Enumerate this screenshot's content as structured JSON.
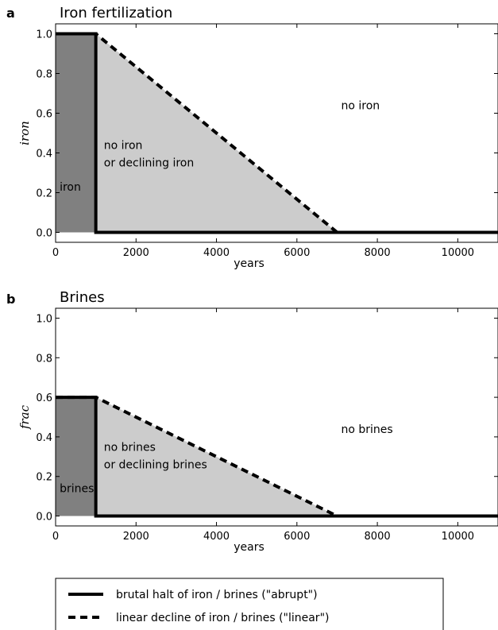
{
  "chart_data": [
    {
      "type": "line",
      "panel_letter": "a",
      "title": "Iron fertilization",
      "xlabel": "years",
      "ylabel": "iron",
      "xlim": [
        0,
        11000
      ],
      "ylim": [
        -0.05,
        1.05
      ],
      "xticks": [
        0,
        2000,
        4000,
        6000,
        8000,
        10000
      ],
      "yticks": [
        0.0,
        0.2,
        0.4,
        0.6,
        0.8,
        1.0
      ],
      "ytick_labels": [
        "0.0",
        "0.2",
        "0.4",
        "0.6",
        "0.8",
        "1.0"
      ],
      "region_fills": [
        {
          "name": "iron",
          "color": "#808080",
          "x": [
            0,
            1000,
            1000,
            0
          ],
          "y": [
            0,
            0,
            1.0,
            1.0
          ]
        },
        {
          "name": "no iron or declining iron",
          "color": "#cccccc",
          "x": [
            1000,
            1000,
            7000
          ],
          "y": [
            0,
            1.0,
            0
          ]
        }
      ],
      "series": [
        {
          "name": "abrupt",
          "style": "solid",
          "x": [
            0,
            1000,
            1000,
            11000
          ],
          "y": [
            1.0,
            1.0,
            0.0,
            0.0
          ]
        },
        {
          "name": "linear",
          "style": "dashed",
          "x": [
            0,
            1000,
            7000,
            11000
          ],
          "y": [
            1.0,
            1.0,
            0.0,
            0.0
          ]
        }
      ],
      "annotations": [
        {
          "lines": [
            "iron"
          ],
          "x": 100,
          "y": 0.21
        },
        {
          "lines": [
            "no iron",
            "or declining iron"
          ],
          "x": 1200,
          "y": 0.42
        },
        {
          "lines": [
            "no iron"
          ],
          "x": 7100,
          "y": 0.62
        }
      ]
    },
    {
      "type": "line",
      "panel_letter": "b",
      "title": "Brines",
      "xlabel": "years",
      "ylabel": "frac",
      "xlim": [
        0,
        11000
      ],
      "ylim": [
        -0.05,
        1.05
      ],
      "xticks": [
        0,
        2000,
        4000,
        6000,
        8000,
        10000
      ],
      "yticks": [
        0.0,
        0.2,
        0.4,
        0.6,
        0.8,
        1.0
      ],
      "ytick_labels": [
        "0.0",
        "0.2",
        "0.4",
        "0.6",
        "0.8",
        "1.0"
      ],
      "region_fills": [
        {
          "name": "brines",
          "color": "#808080",
          "x": [
            0,
            1000,
            1000,
            0
          ],
          "y": [
            0,
            0,
            0.6,
            0.6
          ]
        },
        {
          "name": "no brines or declining brines",
          "color": "#cccccc",
          "x": [
            1000,
            1000,
            7000
          ],
          "y": [
            0,
            0.6,
            0
          ]
        }
      ],
      "series": [
        {
          "name": "abrupt",
          "style": "solid",
          "x": [
            0,
            1000,
            1000,
            11000
          ],
          "y": [
            0.6,
            0.6,
            0.0,
            0.0
          ]
        },
        {
          "name": "linear",
          "style": "dashed",
          "x": [
            0,
            1000,
            7000,
            11000
          ],
          "y": [
            0.6,
            0.6,
            0.0,
            0.0
          ]
        }
      ],
      "annotations": [
        {
          "lines": [
            "brines"
          ],
          "x": 100,
          "y": 0.12
        },
        {
          "lines": [
            "no brines",
            "or declining brines"
          ],
          "x": 1200,
          "y": 0.33
        },
        {
          "lines": [
            "no brines"
          ],
          "x": 7100,
          "y": 0.42
        }
      ]
    }
  ],
  "legend": {
    "placement": "bottom",
    "entries": [
      {
        "label": "brutal halt of iron / brines (\"abrupt\")",
        "style": "solid"
      },
      {
        "label": "linear decline of iron / brines (\"linear\")",
        "style": "dashed"
      }
    ]
  },
  "colors": {
    "dark_fill": "#808080",
    "light_fill": "#cccccc",
    "line": "#000000"
  }
}
